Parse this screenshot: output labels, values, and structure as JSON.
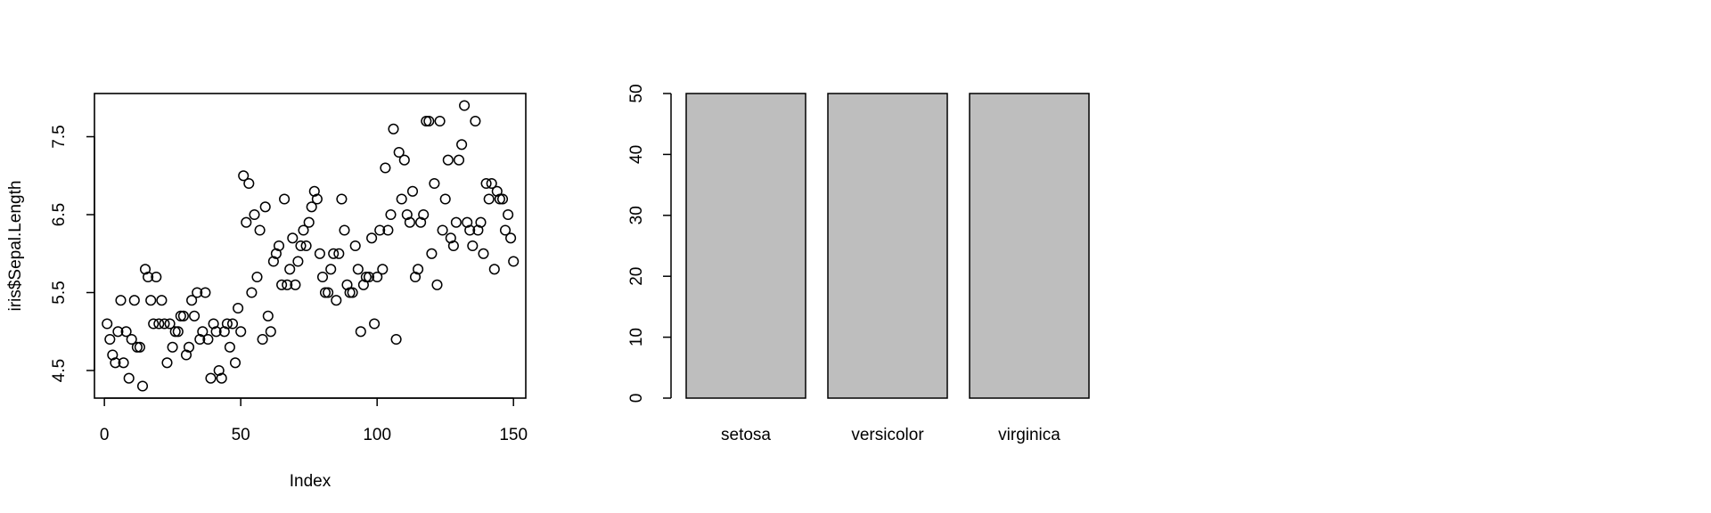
{
  "chart_data": [
    {
      "type": "scatter",
      "title": "",
      "xlabel": "Index",
      "ylabel": "iris$Sepal.Length",
      "xlim": [
        1,
        150
      ],
      "ylim": [
        4.3,
        7.9
      ],
      "xticks": [
        0,
        50,
        100,
        150
      ],
      "yticks": [
        4.5,
        5.5,
        6.5,
        7.5
      ],
      "grid": false,
      "x": [
        1,
        2,
        3,
        4,
        5,
        6,
        7,
        8,
        9,
        10,
        11,
        12,
        13,
        14,
        15,
        16,
        17,
        18,
        19,
        20,
        21,
        22,
        23,
        24,
        25,
        26,
        27,
        28,
        29,
        30,
        31,
        32,
        33,
        34,
        35,
        36,
        37,
        38,
        39,
        40,
        41,
        42,
        43,
        44,
        45,
        46,
        47,
        48,
        49,
        50,
        51,
        52,
        53,
        54,
        55,
        56,
        57,
        58,
        59,
        60,
        61,
        62,
        63,
        64,
        65,
        66,
        67,
        68,
        69,
        70,
        71,
        72,
        73,
        74,
        75,
        76,
        77,
        78,
        79,
        80,
        81,
        82,
        83,
        84,
        85,
        86,
        87,
        88,
        89,
        90,
        91,
        92,
        93,
        94,
        95,
        96,
        97,
        98,
        99,
        100,
        101,
        102,
        103,
        104,
        105,
        106,
        107,
        108,
        109,
        110,
        111,
        112,
        113,
        114,
        115,
        116,
        117,
        118,
        119,
        120,
        121,
        122,
        123,
        124,
        125,
        126,
        127,
        128,
        129,
        130,
        131,
        132,
        133,
        134,
        135,
        136,
        137,
        138,
        139,
        140,
        141,
        142,
        143,
        144,
        145,
        146,
        147,
        148,
        149,
        150
      ],
      "y": [
        5.1,
        4.9,
        4.7,
        4.6,
        5.0,
        5.4,
        4.6,
        5.0,
        4.4,
        4.9,
        5.4,
        4.8,
        4.8,
        4.3,
        5.8,
        5.7,
        5.4,
        5.1,
        5.7,
        5.1,
        5.4,
        5.1,
        4.6,
        5.1,
        4.8,
        5.0,
        5.0,
        5.2,
        5.2,
        4.7,
        4.8,
        5.4,
        5.2,
        5.5,
        4.9,
        5.0,
        5.5,
        4.9,
        4.4,
        5.1,
        5.0,
        4.5,
        4.4,
        5.0,
        5.1,
        4.8,
        5.1,
        4.6,
        5.3,
        5.0,
        7.0,
        6.4,
        6.9,
        5.5,
        6.5,
        5.7,
        6.3,
        4.9,
        6.6,
        5.2,
        5.0,
        5.9,
        6.0,
        6.1,
        5.6,
        6.7,
        5.6,
        5.8,
        6.2,
        5.6,
        5.9,
        6.1,
        6.3,
        6.1,
        6.4,
        6.6,
        6.8,
        6.7,
        6.0,
        5.7,
        5.5,
        5.5,
        5.8,
        6.0,
        5.4,
        6.0,
        6.7,
        6.3,
        5.6,
        5.5,
        5.5,
        6.1,
        5.8,
        5.0,
        5.6,
        5.7,
        5.7,
        6.2,
        5.1,
        5.7,
        6.3,
        5.8,
        7.1,
        6.3,
        6.5,
        7.6,
        4.9,
        7.3,
        6.7,
        7.2,
        6.5,
        6.4,
        6.8,
        5.7,
        5.8,
        6.4,
        6.5,
        7.7,
        7.7,
        6.0,
        6.9,
        5.6,
        7.7,
        6.3,
        6.7,
        7.2,
        6.2,
        6.1,
        6.4,
        7.2,
        7.4,
        7.9,
        6.4,
        6.3,
        6.1,
        7.7,
        6.3,
        6.4,
        6.0,
        6.9,
        6.7,
        6.9,
        5.8,
        6.8,
        6.7,
        6.7,
        6.3,
        6.5,
        6.2,
        5.9
      ]
    },
    {
      "type": "bar",
      "title": "",
      "xlabel": "",
      "ylabel": "",
      "categories": [
        "setosa",
        "versicolor",
        "virginica"
      ],
      "values": [
        50,
        50,
        50
      ],
      "ylim": [
        0,
        50
      ],
      "yticks": [
        0,
        10,
        20,
        30,
        40,
        50
      ],
      "bar_color": "#bebebe",
      "grid": false
    }
  ]
}
